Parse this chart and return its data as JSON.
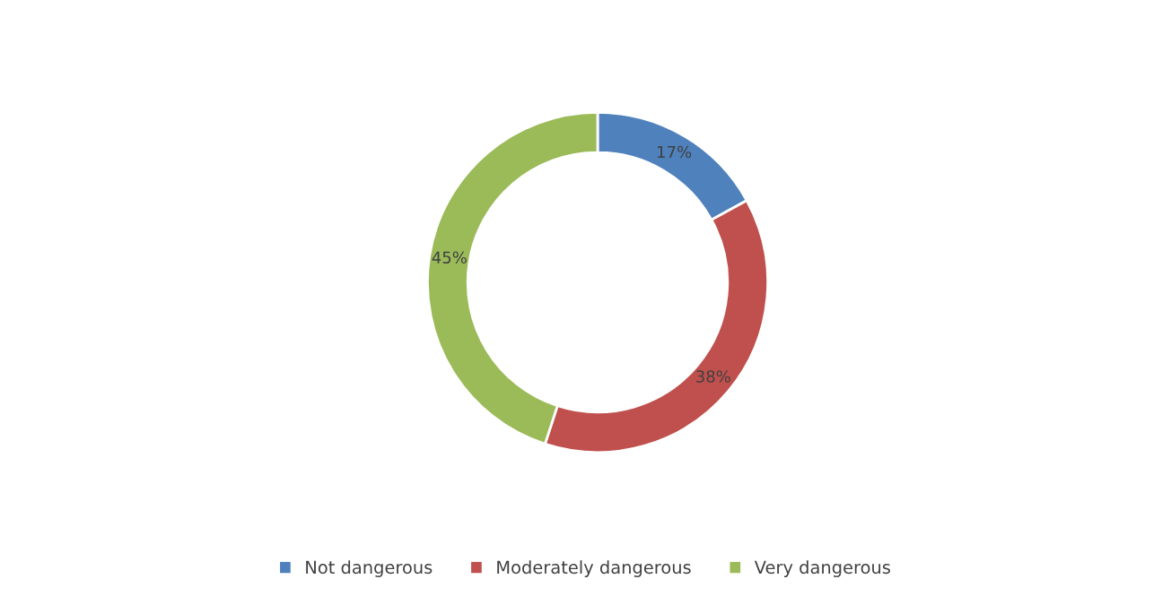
{
  "chart_data": {
    "type": "donut",
    "categories": [
      "Not dangerous",
      "Moderately dangerous",
      "Very dangerous"
    ],
    "values": [
      17,
      38,
      45
    ],
    "colors": [
      "#4f81bd",
      "#c0504d",
      "#9bbb59"
    ],
    "value_labels": [
      "17%",
      "38%",
      "45%"
    ],
    "legend": "bottom"
  }
}
